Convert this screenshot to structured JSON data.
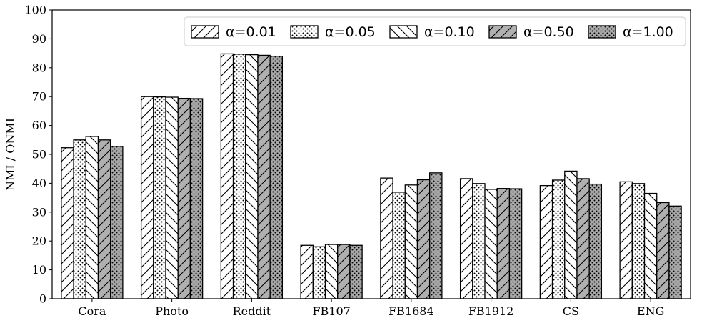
{
  "chart_data": {
    "type": "bar",
    "title": "",
    "xlabel": "",
    "ylabel": "NMI / ONMI",
    "ylim": [
      0,
      100
    ],
    "yticks": [
      0,
      10,
      20,
      30,
      40,
      50,
      60,
      70,
      80,
      90,
      100
    ],
    "grid": false,
    "legend_position": "top-right",
    "categories": [
      "Cora",
      "Photo",
      "Reddit",
      "FB107",
      "FB1684",
      "FB1912",
      "CS",
      "ENG"
    ],
    "series": [
      {
        "name": "α=0.01",
        "pattern": "forward-hatch",
        "color": "#ffffff",
        "values": [
          52.3,
          70.0,
          84.8,
          18.5,
          41.8,
          41.6,
          39.2,
          40.5
        ]
      },
      {
        "name": "α=0.05",
        "pattern": "dots",
        "color": "#ffffff",
        "values": [
          55.0,
          69.9,
          84.7,
          18.0,
          36.9,
          39.9,
          41.1,
          39.9
        ]
      },
      {
        "name": "α=0.10",
        "pattern": "back-hatch",
        "color": "#ffffff",
        "values": [
          56.2,
          69.8,
          84.5,
          18.8,
          39.4,
          37.9,
          44.2,
          36.5
        ]
      },
      {
        "name": "α=0.50",
        "pattern": "forward-hatch",
        "color": "#b0b0b0",
        "values": [
          55.0,
          69.4,
          84.3,
          18.8,
          41.2,
          38.2,
          41.6,
          33.3
        ]
      },
      {
        "name": "α=1.00",
        "pattern": "dots",
        "color": "#a8a8a8",
        "values": [
          52.8,
          69.3,
          84.0,
          18.5,
          43.6,
          38.1,
          39.7,
          32.1
        ]
      }
    ]
  }
}
